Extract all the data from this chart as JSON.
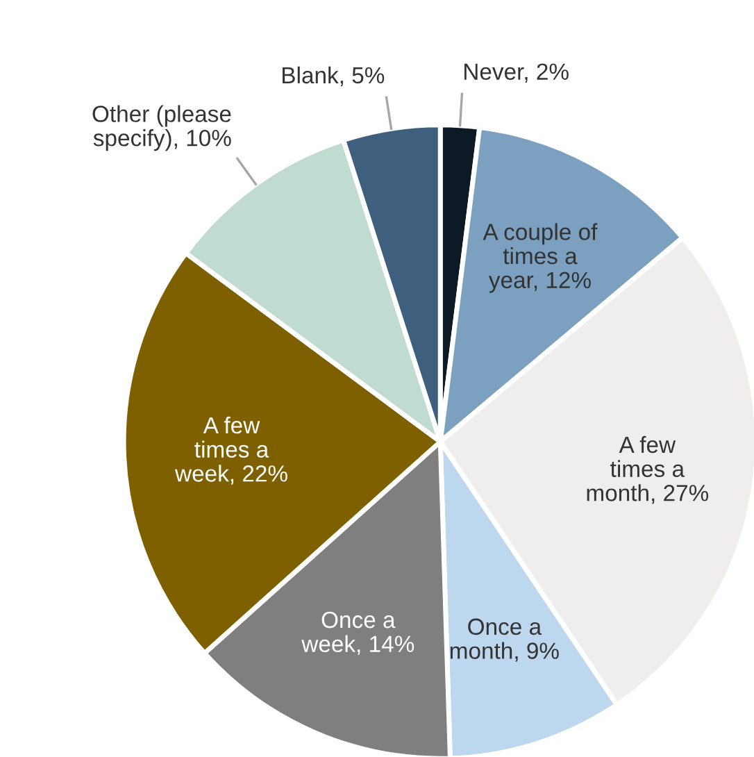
{
  "chart_data": {
    "type": "pie",
    "categories": [
      "Never",
      "A couple of times a year",
      "A few times a month",
      "Once a month",
      "Once a week",
      "A few times a week",
      "Other (please specify)",
      "Blank"
    ],
    "values": [
      2,
      12,
      27,
      9,
      14,
      22,
      10,
      5
    ],
    "value_labels": [
      "2%",
      "12%",
      "27%",
      "9%",
      "14%",
      "22%",
      "10%",
      "5%"
    ],
    "colors": [
      "#0d1a26",
      "#7ba0c0",
      "#efeeec",
      "#bdd7ee",
      "#7f7f7f",
      "#7f6000",
      "#c0dbd0",
      "#3e5f7e"
    ]
  }
}
